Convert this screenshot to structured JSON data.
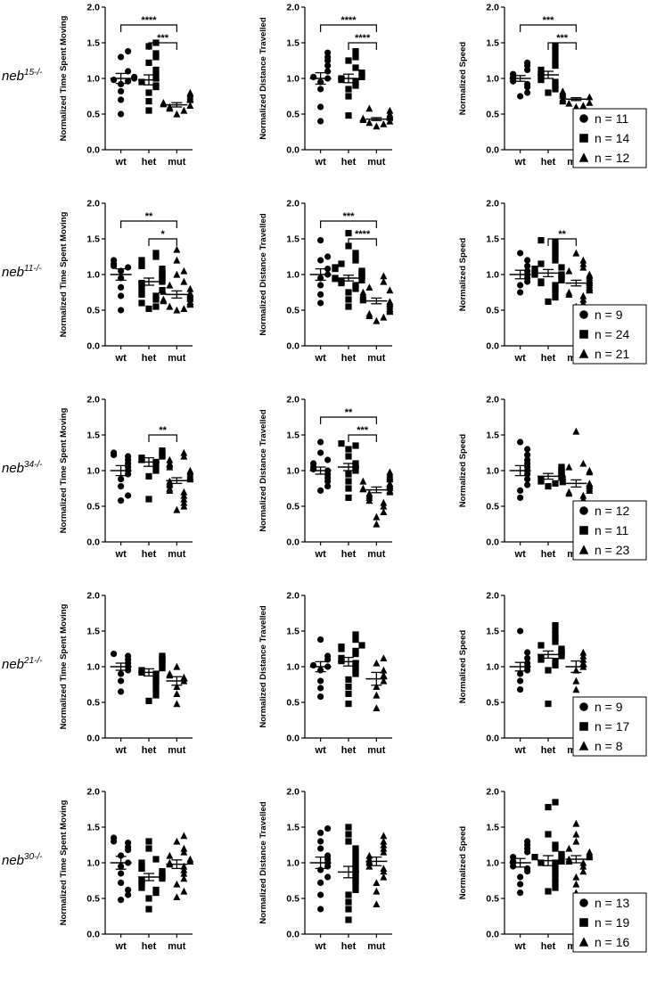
{
  "figure": {
    "x_categories": [
      "wt",
      "het",
      "mut"
    ],
    "marker_shapes": [
      "circle",
      "square",
      "triangle"
    ],
    "ylim": [
      0,
      2.0
    ],
    "yticks": [
      "0.0",
      "0.5",
      "1.0",
      "1.5",
      "2.0"
    ],
    "metric_labels": [
      "Normalized Time Spent Moving",
      "Normalized Distance Travelled",
      "Normalized Speed"
    ],
    "marker_color": "#000000"
  },
  "rows": [
    {
      "gene_base": "neb",
      "gene_sup": "15-/-",
      "n_labels": [
        "n = 11",
        "n = 14",
        "n = 12"
      ]
    },
    {
      "gene_base": "neb",
      "gene_sup": "11-/-",
      "n_labels": [
        "n = 9",
        "n = 24",
        "n = 21"
      ]
    },
    {
      "gene_base": "neb",
      "gene_sup": "34-/-",
      "n_labels": [
        "n = 12",
        "n = 11",
        "n = 23"
      ]
    },
    {
      "gene_base": "neb",
      "gene_sup": "21-/-",
      "n_labels": [
        "n = 9",
        "n = 17",
        "n = 8"
      ]
    },
    {
      "gene_base": "neb",
      "gene_sup": "30-/-",
      "n_labels": [
        "n = 13",
        "n = 19",
        "n = 16"
      ]
    }
  ],
  "chart_data": [
    {
      "type": "scatter",
      "row": 0,
      "col": 0,
      "ylabel": "Normalized Time Spent Moving",
      "categories": [
        "wt",
        "het",
        "mut"
      ],
      "ylim": [
        0,
        2.0
      ],
      "means": [
        1.0,
        0.98,
        0.63
      ],
      "sems": [
        0.07,
        0.07,
        0.03
      ],
      "points": [
        [
          0.5,
          0.7,
          0.82,
          0.92,
          0.96,
          0.98,
          1.0,
          1.02,
          1.1,
          1.3,
          1.38
        ],
        [
          0.55,
          0.68,
          0.8,
          0.88,
          0.95,
          1.0,
          1.05,
          1.12,
          1.22,
          1.3,
          1.35,
          1.45,
          1.5,
          0.9
        ],
        [
          0.5,
          0.55,
          0.58,
          0.6,
          0.62,
          0.64,
          0.66,
          0.7,
          0.72,
          0.75,
          0.78,
          0.8
        ]
      ],
      "significance": [
        {
          "from": 0,
          "to": 2,
          "label": "****"
        },
        {
          "from": 1,
          "to": 2,
          "label": "***"
        }
      ]
    },
    {
      "type": "scatter",
      "row": 0,
      "col": 1,
      "ylabel": "Normalized Distance Travelled",
      "categories": [
        "wt",
        "het",
        "mut"
      ],
      "ylim": [
        0,
        2.0
      ],
      "means": [
        1.0,
        1.0,
        0.43
      ],
      "sems": [
        0.08,
        0.06,
        0.02
      ],
      "points": [
        [
          0.4,
          0.6,
          0.85,
          0.95,
          1.0,
          1.02,
          1.1,
          1.18,
          1.25,
          1.3,
          1.36
        ],
        [
          0.48,
          0.75,
          0.85,
          0.9,
          0.95,
          0.98,
          1.0,
          1.05,
          1.08,
          1.15,
          1.25,
          1.3,
          1.38,
          1.02
        ],
        [
          0.33,
          0.36,
          0.38,
          0.4,
          0.42,
          0.44,
          0.45,
          0.46,
          0.48,
          0.5,
          0.55,
          0.58
        ]
      ],
      "significance": [
        {
          "from": 0,
          "to": 2,
          "label": "****"
        },
        {
          "from": 1,
          "to": 2,
          "label": "****"
        }
      ]
    },
    {
      "type": "scatter",
      "row": 0,
      "col": 2,
      "ylabel": "Normalized Speed",
      "categories": [
        "wt",
        "het",
        "mut"
      ],
      "ylim": [
        0,
        2.0
      ],
      "means": [
        1.0,
        1.05,
        0.71
      ],
      "sems": [
        0.04,
        0.05,
        0.02
      ],
      "points": [
        [
          0.75,
          0.8,
          0.88,
          0.92,
          0.96,
          1.0,
          1.02,
          1.06,
          1.12,
          1.18,
          1.22
        ],
        [
          0.8,
          0.85,
          0.9,
          0.95,
          1.0,
          1.05,
          1.08,
          1.12,
          1.18,
          1.22,
          1.3,
          1.38,
          1.45,
          0.98
        ],
        [
          0.6,
          0.62,
          0.65,
          0.66,
          0.68,
          0.7,
          0.72,
          0.74,
          0.76,
          0.78,
          0.8,
          0.82
        ]
      ],
      "significance": [
        {
          "from": 0,
          "to": 2,
          "label": "***"
        },
        {
          "from": 1,
          "to": 2,
          "label": "***"
        }
      ]
    },
    {
      "type": "scatter",
      "row": 1,
      "col": 0,
      "ylabel": "Normalized Time Spent Moving",
      "categories": [
        "wt",
        "het",
        "mut"
      ],
      "ylim": [
        0,
        2.0
      ],
      "means": [
        1.0,
        0.9,
        0.72
      ],
      "sems": [
        0.08,
        0.05,
        0.05
      ],
      "points": [
        [
          0.5,
          0.7,
          0.82,
          0.95,
          1.05,
          1.1,
          1.12,
          1.15,
          1.2
        ],
        [
          0.52,
          0.55,
          0.6,
          0.65,
          0.7,
          0.72,
          0.75,
          0.78,
          0.82,
          0.85,
          0.88,
          0.9,
          0.92,
          0.95,
          0.98,
          1.0,
          1.02,
          1.05,
          1.08,
          1.12,
          1.15,
          1.2,
          1.25,
          1.3
        ],
        [
          0.5,
          0.52,
          0.55,
          0.58,
          0.6,
          0.62,
          0.63,
          0.65,
          0.66,
          0.68,
          0.7,
          0.72,
          0.74,
          0.76,
          0.8,
          0.85,
          0.9,
          1.0,
          1.05,
          1.2,
          1.35
        ]
      ],
      "significance": [
        {
          "from": 0,
          "to": 2,
          "label": "**"
        },
        {
          "from": 1,
          "to": 2,
          "label": "*"
        }
      ]
    },
    {
      "type": "scatter",
      "row": 1,
      "col": 1,
      "ylabel": "Normalized Distance Travelled",
      "categories": [
        "wt",
        "het",
        "mut"
      ],
      "ylim": [
        0,
        2.0
      ],
      "means": [
        1.0,
        0.95,
        0.63
      ],
      "sems": [
        0.08,
        0.04,
        0.04
      ],
      "points": [
        [
          0.6,
          0.72,
          0.85,
          0.95,
          1.0,
          1.08,
          1.2,
          1.25,
          1.48
        ],
        [
          0.55,
          0.65,
          0.75,
          0.8,
          0.85,
          0.88,
          0.9,
          0.92,
          0.94,
          0.95,
          0.96,
          0.98,
          1.0,
          1.02,
          1.04,
          1.05,
          1.08,
          1.1,
          1.15,
          1.2,
          1.25,
          1.3,
          1.4,
          1.58
        ],
        [
          0.35,
          0.4,
          0.42,
          0.45,
          0.48,
          0.5,
          0.52,
          0.55,
          0.58,
          0.6,
          0.62,
          0.64,
          0.66,
          0.68,
          0.7,
          0.72,
          0.75,
          0.78,
          0.82,
          0.9,
          0.98
        ]
      ],
      "significance": [
        {
          "from": 0,
          "to": 2,
          "label": "***"
        },
        {
          "from": 1,
          "to": 2,
          "label": "****"
        }
      ]
    },
    {
      "type": "scatter",
      "row": 1,
      "col": 2,
      "ylabel": "Normalized Speed",
      "categories": [
        "wt",
        "het",
        "mut"
      ],
      "ylim": [
        0,
        2.0
      ],
      "means": [
        1.0,
        1.02,
        0.88
      ],
      "sems": [
        0.06,
        0.05,
        0.04
      ],
      "points": [
        [
          0.75,
          0.85,
          0.9,
          0.95,
          1.0,
          1.05,
          1.12,
          1.2,
          1.3
        ],
        [
          0.62,
          0.68,
          0.75,
          0.8,
          0.85,
          0.88,
          0.9,
          0.92,
          0.95,
          0.98,
          1.0,
          1.02,
          1.05,
          1.08,
          1.1,
          1.15,
          1.2,
          1.25,
          1.3,
          1.35,
          1.4,
          1.45,
          1.48,
          1.0
        ],
        [
          0.55,
          0.6,
          0.65,
          0.7,
          0.72,
          0.75,
          0.78,
          0.8,
          0.82,
          0.85,
          0.88,
          0.9,
          0.92,
          0.95,
          0.98,
          1.0,
          1.05,
          1.1,
          1.15,
          1.2,
          1.3
        ]
      ],
      "significance": [
        {
          "from": 1,
          "to": 2,
          "label": "**"
        }
      ]
    },
    {
      "type": "scatter",
      "row": 2,
      "col": 0,
      "ylabel": "Normalized Time Spent Moving",
      "categories": [
        "wt",
        "het",
        "mut"
      ],
      "ylim": [
        0,
        2.0
      ],
      "means": [
        1.0,
        1.12,
        0.86
      ],
      "sems": [
        0.07,
        0.06,
        0.04
      ],
      "points": [
        [
          0.58,
          0.65,
          0.78,
          0.88,
          0.95,
          1.0,
          1.05,
          1.1,
          1.15,
          1.2,
          1.22,
          1.25
        ],
        [
          0.6,
          0.92,
          1.0,
          1.08,
          1.12,
          1.15,
          1.18,
          1.2,
          1.22,
          1.25,
          1.28
        ],
        [
          0.45,
          0.5,
          0.55,
          0.6,
          0.65,
          0.7,
          0.72,
          0.75,
          0.8,
          0.82,
          0.85,
          0.88,
          0.9,
          0.92,
          0.95,
          0.98,
          1.0,
          1.05,
          1.08,
          1.1,
          1.15,
          1.2,
          1.25
        ]
      ],
      "significance": [
        {
          "from": 1,
          "to": 2,
          "label": "**"
        }
      ]
    },
    {
      "type": "scatter",
      "row": 2,
      "col": 1,
      "ylabel": "Normalized Distance Travelled",
      "categories": [
        "wt",
        "het",
        "mut"
      ],
      "ylim": [
        0,
        2.0
      ],
      "means": [
        1.0,
        1.05,
        0.73
      ],
      "sems": [
        0.05,
        0.05,
        0.04
      ],
      "points": [
        [
          0.72,
          0.78,
          0.85,
          0.9,
          0.95,
          1.0,
          1.02,
          1.05,
          1.1,
          1.15,
          1.25,
          1.4
        ],
        [
          0.62,
          0.75,
          0.85,
          0.95,
          1.0,
          1.05,
          1.1,
          1.2,
          1.3,
          1.35,
          1.38
        ],
        [
          0.25,
          0.35,
          0.42,
          0.5,
          0.55,
          0.58,
          0.62,
          0.65,
          0.68,
          0.7,
          0.72,
          0.74,
          0.75,
          0.76,
          0.78,
          0.8,
          0.82,
          0.85,
          0.88,
          0.9,
          0.92,
          0.95,
          0.98
        ]
      ],
      "significance": [
        {
          "from": 0,
          "to": 2,
          "label": "**"
        },
        {
          "from": 1,
          "to": 2,
          "label": "***"
        }
      ]
    },
    {
      "type": "scatter",
      "row": 2,
      "col": 2,
      "ylabel": "Normalized Speed",
      "categories": [
        "wt",
        "het",
        "mut"
      ],
      "ylim": [
        0,
        2.0
      ],
      "means": [
        1.0,
        0.92,
        0.82
      ],
      "sems": [
        0.07,
        0.04,
        0.05
      ],
      "points": [
        [
          0.62,
          0.72,
          0.8,
          0.88,
          0.95,
          1.0,
          1.05,
          1.1,
          1.15,
          1.22,
          1.3,
          1.4
        ],
        [
          0.78,
          0.82,
          0.85,
          0.88,
          0.9,
          0.92,
          0.95,
          0.98,
          1.0,
          1.02,
          1.05
        ],
        [
          0.42,
          0.5,
          0.55,
          0.6,
          0.65,
          0.68,
          0.7,
          0.72,
          0.75,
          0.78,
          0.8,
          0.82,
          0.84,
          0.86,
          0.88,
          0.9,
          0.92,
          0.95,
          0.98,
          1.0,
          1.05,
          1.1,
          1.55
        ]
      ],
      "significance": []
    },
    {
      "type": "scatter",
      "row": 3,
      "col": 0,
      "ylabel": "Normalized Time Spent Moving",
      "categories": [
        "wt",
        "het",
        "mut"
      ],
      "ylim": [
        0,
        2.0
      ],
      "means": [
        1.0,
        0.92,
        0.8
      ],
      "sems": [
        0.05,
        0.05,
        0.06
      ],
      "points": [
        [
          0.65,
          0.8,
          0.9,
          0.95,
          1.0,
          1.05,
          1.1,
          1.15,
          1.18
        ],
        [
          0.52,
          0.6,
          0.68,
          0.75,
          0.8,
          0.85,
          0.9,
          0.92,
          0.95,
          0.98,
          1.0,
          1.02,
          1.05,
          1.08,
          1.1,
          1.12,
          1.15
        ],
        [
          0.48,
          0.62,
          0.72,
          0.8,
          0.85,
          0.88,
          0.9,
          1.0
        ]
      ],
      "significance": []
    },
    {
      "type": "scatter",
      "row": 3,
      "col": 1,
      "ylabel": "Normalized Distance Travelled",
      "categories": [
        "wt",
        "het",
        "mut"
      ],
      "ylim": [
        0,
        2.0
      ],
      "means": [
        1.0,
        1.07,
        0.83
      ],
      "sems": [
        0.07,
        0.06,
        0.09
      ],
      "points": [
        [
          0.58,
          0.7,
          0.8,
          0.95,
          1.0,
          1.02,
          1.1,
          1.15,
          1.38
        ],
        [
          0.48,
          0.62,
          0.72,
          0.82,
          0.9,
          0.95,
          1.0,
          1.05,
          1.08,
          1.12,
          1.18,
          1.22,
          1.25,
          1.28,
          1.3,
          1.38,
          1.45
        ],
        [
          0.42,
          0.6,
          0.72,
          0.8,
          0.88,
          0.95,
          1.05,
          1.12
        ]
      ],
      "significance": []
    },
    {
      "type": "scatter",
      "row": 3,
      "col": 2,
      "ylabel": "Normalized Speed",
      "categories": [
        "wt",
        "het",
        "mut"
      ],
      "ylim": [
        0,
        2.0
      ],
      "means": [
        1.0,
        1.17,
        1.0
      ],
      "sems": [
        0.06,
        0.05,
        0.08
      ],
      "points": [
        [
          0.68,
          0.8,
          0.9,
          0.95,
          1.0,
          1.05,
          1.12,
          1.2,
          1.5
        ],
        [
          0.48,
          0.95,
          1.02,
          1.08,
          1.1,
          1.12,
          1.15,
          1.18,
          1.2,
          1.22,
          1.25,
          1.3,
          1.35,
          1.4,
          1.45,
          1.52,
          1.58
        ],
        [
          0.68,
          0.8,
          0.95,
          1.0,
          1.05,
          1.1,
          1.15,
          1.2
        ]
      ],
      "significance": []
    },
    {
      "type": "scatter",
      "row": 4,
      "col": 0,
      "ylabel": "Normalized Time Spent Moving",
      "categories": [
        "wt",
        "het",
        "mut"
      ],
      "ylim": [
        0,
        2.0
      ],
      "means": [
        1.0,
        0.8,
        0.98
      ],
      "sems": [
        0.09,
        0.05,
        0.06
      ],
      "points": [
        [
          0.48,
          0.55,
          0.62,
          0.72,
          0.85,
          0.95,
          1.0,
          1.1,
          1.18,
          1.22,
          1.28,
          1.3,
          1.35
        ],
        [
          0.35,
          0.5,
          0.58,
          0.62,
          0.65,
          0.7,
          0.72,
          0.75,
          0.78,
          0.8,
          0.82,
          0.85,
          0.88,
          0.92,
          0.95,
          1.0,
          1.05,
          1.2,
          1.3
        ],
        [
          0.52,
          0.6,
          0.7,
          0.78,
          0.85,
          0.9,
          0.95,
          0.98,
          1.0,
          1.02,
          1.05,
          1.1,
          1.15,
          1.2,
          1.3,
          1.38
        ]
      ],
      "significance": []
    },
    {
      "type": "scatter",
      "row": 4,
      "col": 1,
      "ylabel": "Normalized Distance Travelled",
      "categories": [
        "wt",
        "het",
        "mut"
      ],
      "ylim": [
        0,
        2.0
      ],
      "means": [
        1.0,
        0.87,
        1.02
      ],
      "sems": [
        0.08,
        0.08,
        0.06
      ],
      "points": [
        [
          0.35,
          0.55,
          0.72,
          0.8,
          0.9,
          0.95,
          1.0,
          1.05,
          1.1,
          1.2,
          1.3,
          1.42,
          1.48
        ],
        [
          0.2,
          0.35,
          0.45,
          0.55,
          0.62,
          0.7,
          0.75,
          0.8,
          0.85,
          0.9,
          0.95,
          1.0,
          1.05,
          1.1,
          1.15,
          1.2,
          1.3,
          1.4,
          1.5
        ],
        [
          0.42,
          0.6,
          0.72,
          0.8,
          0.88,
          0.92,
          0.95,
          1.0,
          1.02,
          1.05,
          1.1,
          1.15,
          1.2,
          1.25,
          1.3,
          1.38
        ]
      ],
      "significance": []
    },
    {
      "type": "scatter",
      "row": 4,
      "col": 2,
      "ylabel": "Normalized Speed",
      "categories": [
        "wt",
        "het",
        "mut"
      ],
      "ylim": [
        0,
        2.0
      ],
      "means": [
        1.0,
        1.03,
        1.05
      ],
      "sems": [
        0.06,
        0.07,
        0.05
      ],
      "points": [
        [
          0.58,
          0.7,
          0.8,
          0.88,
          0.92,
          0.95,
          1.0,
          1.02,
          1.08,
          1.15,
          1.2,
          1.25,
          1.3
        ],
        [
          0.6,
          0.65,
          0.72,
          0.78,
          0.85,
          0.9,
          0.95,
          1.0,
          1.0,
          1.02,
          1.05,
          1.08,
          1.1,
          1.12,
          1.2,
          1.25,
          1.4,
          1.78,
          1.85
        ],
        [
          0.58,
          0.7,
          0.8,
          0.88,
          0.95,
          1.0,
          1.02,
          1.05,
          1.08,
          1.1,
          1.12,
          1.15,
          1.2,
          1.3,
          1.4,
          1.55
        ]
      ],
      "significance": []
    }
  ]
}
